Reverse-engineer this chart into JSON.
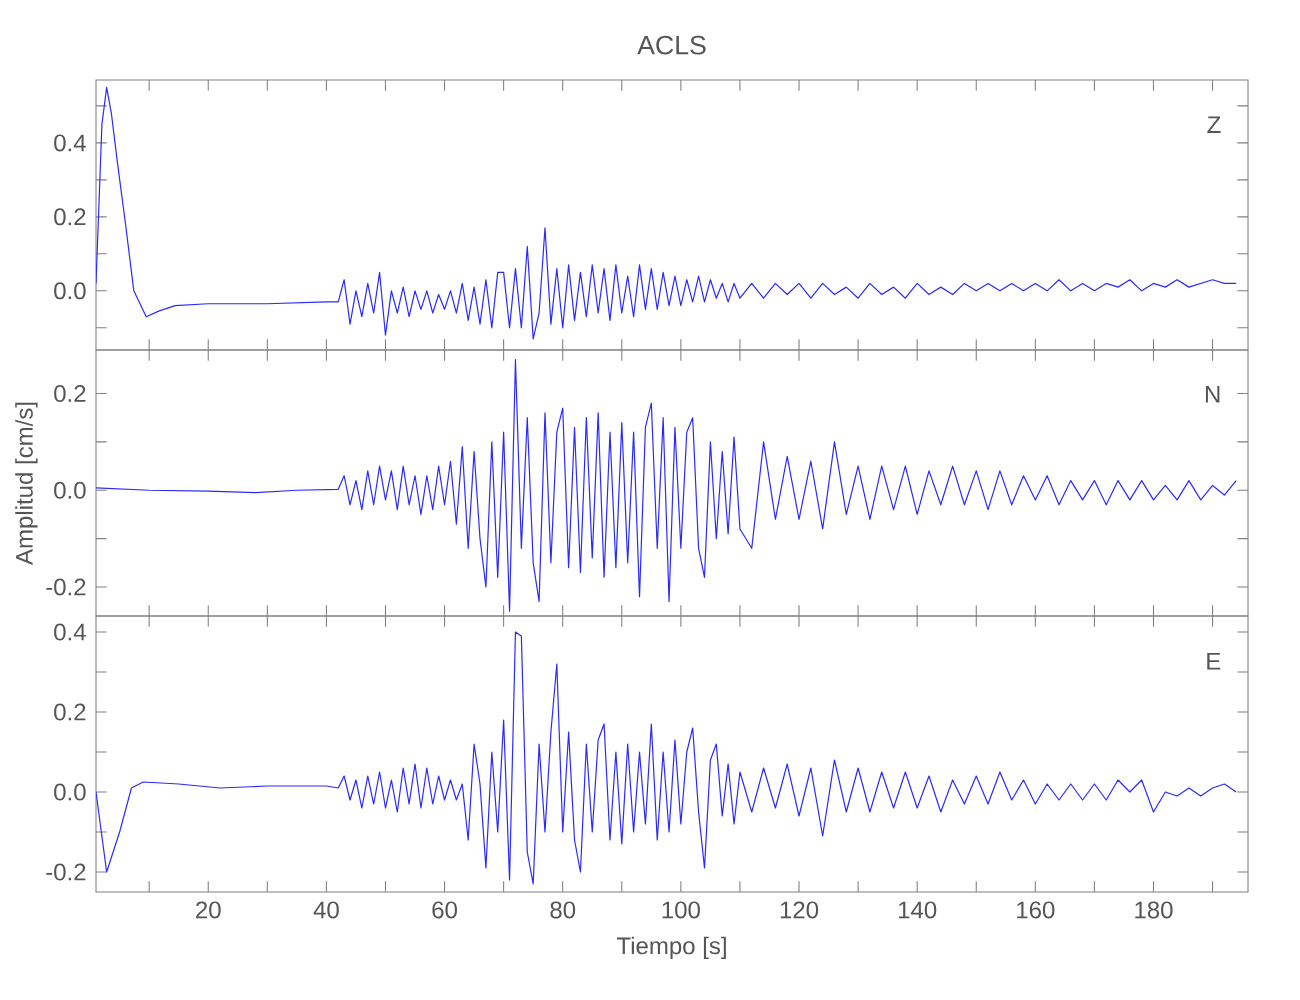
{
  "chart_data": [
    {
      "type": "line",
      "title": "ACLS",
      "annotations": [
        "Z"
      ],
      "color": "#2a2aff",
      "tick_labels": "y",
      "xlim": [
        1,
        196
      ],
      "ylim": [
        -0.16,
        0.57
      ],
      "xticks": [
        {
          "value": 10,
          "label": null
        },
        {
          "value": 20,
          "label": null
        },
        {
          "value": 30,
          "label": null
        },
        {
          "value": 40,
          "label": null
        },
        {
          "value": 50,
          "label": null
        },
        {
          "value": 60,
          "label": null
        },
        {
          "value": 70,
          "label": null
        },
        {
          "value": 80,
          "label": null
        },
        {
          "value": 90,
          "label": null
        },
        {
          "value": 100,
          "label": null
        },
        {
          "value": 110,
          "label": null
        },
        {
          "value": 120,
          "label": null
        },
        {
          "value": 130,
          "label": null
        },
        {
          "value": 140,
          "label": null
        },
        {
          "value": 150,
          "label": null
        },
        {
          "value": 160,
          "label": null
        },
        {
          "value": 170,
          "label": null
        },
        {
          "value": 180,
          "label": null
        },
        {
          "value": 190,
          "label": null
        }
      ],
      "yticks": [
        {
          "value": -0.1,
          "label": null
        },
        {
          "value": 0.0,
          "label": "0.0"
        },
        {
          "value": 0.1,
          "label": null
        },
        {
          "value": 0.2,
          "label": "0.2"
        },
        {
          "value": 0.3,
          "label": null
        },
        {
          "value": 0.4,
          "label": "0.4"
        },
        {
          "value": 0.5,
          "label": null
        }
      ],
      "x": [
        1,
        2,
        2.8,
        3.6,
        4.6,
        6,
        7.4,
        9.5,
        11.6,
        14.4,
        20,
        30,
        40,
        42,
        43,
        44,
        45,
        46,
        47,
        48,
        49,
        50,
        51,
        52,
        53,
        54,
        55,
        56,
        57,
        58,
        59,
        60,
        61,
        62,
        63,
        64,
        65,
        66,
        67,
        68,
        69,
        70,
        71,
        72,
        73,
        74,
        75,
        76,
        77,
        78,
        79,
        80,
        81,
        82,
        83,
        84,
        85,
        86,
        87,
        88,
        89,
        90,
        91,
        92,
        93,
        94,
        95,
        96,
        97,
        98,
        99,
        100,
        101,
        102,
        103,
        104,
        105,
        106,
        107,
        108,
        109,
        110,
        112,
        114,
        116,
        118,
        120,
        122,
        124,
        126,
        128,
        130,
        132,
        134,
        136,
        138,
        140,
        142,
        144,
        146,
        148,
        150,
        152,
        154,
        156,
        158,
        160,
        162,
        164,
        166,
        168,
        170,
        172,
        174,
        176,
        178,
        180,
        182,
        184,
        186,
        188,
        190,
        192,
        194
      ],
      "values": [
        0.02,
        0.45,
        0.55,
        0.48,
        0.35,
        0.18,
        0.0,
        -0.07,
        -0.055,
        -0.04,
        -0.035,
        -0.035,
        -0.03,
        -0.03,
        0.03,
        -0.09,
        0.0,
        -0.07,
        0.02,
        -0.06,
        0.05,
        -0.12,
        0.0,
        -0.06,
        0.01,
        -0.07,
        0.0,
        -0.05,
        0.0,
        -0.06,
        -0.01,
        -0.05,
        0.0,
        -0.06,
        0.02,
        -0.08,
        0.01,
        -0.09,
        0.03,
        -0.1,
        0.05,
        0.05,
        -0.1,
        0.06,
        -0.1,
        0.12,
        -0.13,
        -0.06,
        0.17,
        -0.09,
        0.06,
        -0.1,
        0.07,
        -0.08,
        0.05,
        -0.07,
        0.07,
        -0.06,
        0.06,
        -0.08,
        0.07,
        -0.06,
        0.04,
        -0.07,
        0.07,
        -0.05,
        0.06,
        -0.05,
        0.05,
        -0.04,
        0.04,
        -0.04,
        0.03,
        -0.03,
        0.04,
        -0.03,
        0.03,
        -0.02,
        0.02,
        -0.03,
        0.02,
        -0.02,
        0.02,
        -0.02,
        0.02,
        -0.01,
        0.02,
        -0.02,
        0.02,
        -0.01,
        0.01,
        -0.02,
        0.02,
        -0.01,
        0.01,
        -0.02,
        0.02,
        -0.01,
        0.01,
        -0.01,
        0.02,
        0.0,
        0.02,
        0.0,
        0.02,
        0.0,
        0.02,
        0.0,
        0.03,
        0.0,
        0.02,
        0.0,
        0.02,
        0.01,
        0.03,
        0.0,
        0.02,
        0.01,
        0.03,
        0.01,
        0.02,
        0.03,
        0.02,
        0.02
      ]
    },
    {
      "type": "line",
      "ylabel": "Amplitud [cm/s]",
      "annotations": [
        "N"
      ],
      "color": "#2a2aff",
      "tick_labels": "y",
      "xlim": [
        1,
        196
      ],
      "ylim": [
        -0.26,
        0.29
      ],
      "xticks": [
        {
          "value": 10,
          "label": null
        },
        {
          "value": 20,
          "label": null
        },
        {
          "value": 30,
          "label": null
        },
        {
          "value": 40,
          "label": null
        },
        {
          "value": 50,
          "label": null
        },
        {
          "value": 60,
          "label": null
        },
        {
          "value": 70,
          "label": null
        },
        {
          "value": 80,
          "label": null
        },
        {
          "value": 90,
          "label": null
        },
        {
          "value": 100,
          "label": null
        },
        {
          "value": 110,
          "label": null
        },
        {
          "value": 120,
          "label": null
        },
        {
          "value": 130,
          "label": null
        },
        {
          "value": 140,
          "label": null
        },
        {
          "value": 150,
          "label": null
        },
        {
          "value": 160,
          "label": null
        },
        {
          "value": 170,
          "label": null
        },
        {
          "value": 180,
          "label": null
        },
        {
          "value": 190,
          "label": null
        }
      ],
      "yticks": [
        {
          "value": -0.2,
          "label": "-0.2"
        },
        {
          "value": -0.1,
          "label": null
        },
        {
          "value": 0.0,
          "label": "0.0"
        },
        {
          "value": 0.1,
          "label": null
        },
        {
          "value": 0.2,
          "label": "0.2"
        }
      ],
      "x": [
        1,
        10,
        20,
        28,
        35,
        42,
        43,
        44,
        45,
        46,
        47,
        48,
        49,
        50,
        51,
        52,
        53,
        54,
        55,
        56,
        57,
        58,
        59,
        60,
        61,
        62,
        63,
        64,
        65,
        66,
        67,
        68,
        69,
        70,
        71,
        72,
        73,
        74,
        75,
        76,
        77,
        78,
        79,
        80,
        81,
        82,
        83,
        84,
        85,
        86,
        87,
        88,
        89,
        90,
        91,
        92,
        93,
        94,
        95,
        96,
        97,
        98,
        99,
        100,
        101,
        102,
        103,
        104,
        105,
        106,
        107,
        108,
        109,
        110,
        112,
        114,
        116,
        118,
        120,
        122,
        124,
        126,
        128,
        130,
        132,
        134,
        136,
        138,
        140,
        142,
        144,
        146,
        148,
        150,
        152,
        154,
        156,
        158,
        160,
        162,
        164,
        166,
        168,
        170,
        172,
        174,
        176,
        178,
        180,
        182,
        184,
        186,
        188,
        190,
        192,
        194
      ],
      "values": [
        0.005,
        0.0,
        -0.002,
        -0.005,
        0.0,
        0.002,
        0.03,
        -0.03,
        0.02,
        -0.04,
        0.04,
        -0.03,
        0.05,
        -0.02,
        0.04,
        -0.04,
        0.05,
        -0.03,
        0.03,
        -0.05,
        0.03,
        -0.04,
        0.05,
        -0.03,
        0.06,
        -0.07,
        0.09,
        -0.12,
        0.08,
        -0.1,
        -0.2,
        0.1,
        -0.18,
        0.12,
        -0.25,
        0.27,
        -0.12,
        0.15,
        -0.15,
        -0.23,
        0.16,
        -0.15,
        0.12,
        0.17,
        -0.16,
        0.13,
        -0.17,
        0.15,
        -0.14,
        0.16,
        -0.18,
        0.12,
        -0.16,
        0.14,
        -0.15,
        0.12,
        -0.22,
        0.13,
        0.18,
        -0.12,
        0.15,
        -0.23,
        0.13,
        -0.12,
        0.12,
        0.15,
        -0.12,
        -0.18,
        0.1,
        -0.1,
        0.08,
        -0.09,
        0.11,
        -0.08,
        -0.12,
        0.1,
        -0.06,
        0.07,
        -0.06,
        0.06,
        -0.08,
        0.1,
        -0.05,
        0.05,
        -0.06,
        0.05,
        -0.04,
        0.05,
        -0.05,
        0.04,
        -0.03,
        0.05,
        -0.03,
        0.04,
        -0.04,
        0.04,
        -0.03,
        0.03,
        -0.02,
        0.03,
        -0.03,
        0.02,
        -0.02,
        0.02,
        -0.03,
        0.02,
        -0.02,
        0.02,
        -0.02,
        0.01,
        -0.02,
        0.02,
        -0.02,
        0.01,
        -0.01,
        0.02
      ]
    },
    {
      "type": "line",
      "xlabel": "Tiempo [s]",
      "annotations": [
        "E"
      ],
      "color": "#2a2aff",
      "xlim": [
        1,
        196
      ],
      "ylim": [
        -0.25,
        0.44
      ],
      "xticks": [
        {
          "value": 10,
          "label": null
        },
        20,
        {
          "value": 30,
          "label": null
        },
        40,
        {
          "value": 50,
          "label": null
        },
        60,
        {
          "value": 70,
          "label": null
        },
        80,
        {
          "value": 90,
          "label": null
        },
        100,
        {
          "value": 110,
          "label": null
        },
        120,
        {
          "value": 130,
          "label": null
        },
        140,
        {
          "value": 150,
          "label": null
        },
        160,
        {
          "value": 170,
          "label": null
        },
        180,
        {
          "value": 190,
          "label": null
        }
      ],
      "yticks": [
        {
          "value": -0.2,
          "label": "-0.2"
        },
        {
          "value": -0.1,
          "label": null
        },
        {
          "value": 0.0,
          "label": "0.0"
        },
        {
          "value": 0.1,
          "label": null
        },
        {
          "value": 0.2,
          "label": "0.2"
        },
        {
          "value": 0.3,
          "label": null
        },
        {
          "value": 0.4,
          "label": "0.4"
        }
      ],
      "x": [
        1,
        2.8,
        5,
        7,
        9,
        15,
        22,
        30,
        40,
        42,
        43,
        44,
        45,
        46,
        47,
        48,
        49,
        50,
        51,
        52,
        53,
        54,
        55,
        56,
        57,
        58,
        59,
        60,
        61,
        62,
        63,
        64,
        65,
        66,
        67,
        68,
        69,
        70,
        71,
        72,
        73,
        74,
        75,
        76,
        77,
        78,
        79,
        80,
        81,
        82,
        83,
        84,
        85,
        86,
        87,
        88,
        89,
        90,
        91,
        92,
        93,
        94,
        95,
        96,
        97,
        98,
        99,
        100,
        101,
        102,
        103,
        104,
        105,
        106,
        107,
        108,
        109,
        110,
        112,
        114,
        116,
        118,
        120,
        122,
        124,
        126,
        128,
        130,
        132,
        134,
        136,
        138,
        140,
        142,
        144,
        146,
        148,
        150,
        152,
        154,
        156,
        158,
        160,
        162,
        164,
        166,
        168,
        170,
        172,
        174,
        176,
        178,
        180,
        182,
        184,
        186,
        188,
        190,
        192,
        194
      ],
      "values": [
        0.0,
        -0.2,
        -0.1,
        0.01,
        0.025,
        0.02,
        0.01,
        0.015,
        0.015,
        0.01,
        0.04,
        -0.02,
        0.03,
        -0.04,
        0.04,
        -0.03,
        0.05,
        -0.04,
        0.03,
        -0.05,
        0.06,
        -0.03,
        0.07,
        -0.04,
        0.06,
        -0.03,
        0.04,
        -0.02,
        0.03,
        -0.02,
        0.02,
        -0.12,
        0.12,
        0.02,
        -0.19,
        0.1,
        -0.1,
        0.18,
        -0.22,
        0.4,
        0.39,
        -0.15,
        -0.23,
        0.12,
        -0.1,
        0.15,
        0.32,
        -0.1,
        0.15,
        -0.12,
        -0.2,
        0.12,
        -0.1,
        0.13,
        0.17,
        -0.12,
        0.1,
        -0.13,
        0.12,
        -0.1,
        0.1,
        -0.08,
        0.17,
        -0.12,
        0.1,
        -0.1,
        0.13,
        -0.08,
        0.1,
        0.16,
        -0.05,
        -0.19,
        0.08,
        0.12,
        -0.06,
        0.07,
        -0.08,
        0.05,
        -0.05,
        0.06,
        -0.04,
        0.07,
        -0.06,
        0.06,
        -0.11,
        0.08,
        -0.05,
        0.06,
        -0.05,
        0.05,
        -0.04,
        0.05,
        -0.04,
        0.04,
        -0.05,
        0.03,
        -0.03,
        0.04,
        -0.03,
        0.05,
        -0.02,
        0.03,
        -0.03,
        0.02,
        -0.02,
        0.02,
        -0.02,
        0.02,
        -0.02,
        0.03,
        0.0,
        0.03,
        -0.05,
        0.0,
        -0.01,
        0.01,
        -0.01,
        0.01,
        0.02,
        0.0
      ]
    }
  ]
}
